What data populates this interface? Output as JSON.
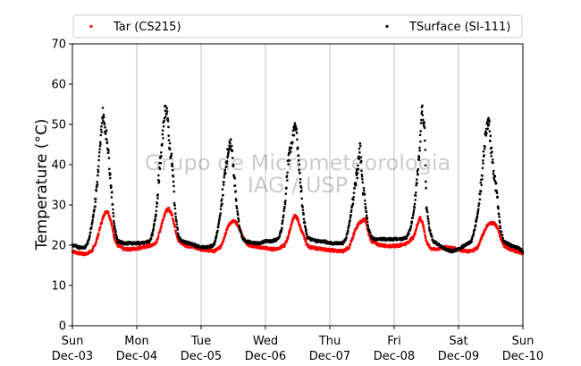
{
  "chart_data": {
    "type": "scatter",
    "ylabel": "Temperature (°C)",
    "ylim": [
      0,
      70
    ],
    "yticks": [
      0,
      10,
      20,
      30,
      40,
      50,
      60,
      70
    ],
    "xlim": [
      "2023-12-03 00:00",
      "2023-12-10 00:00"
    ],
    "xticks": [
      {
        "day": "Sun",
        "date": "Dec-03"
      },
      {
        "day": "Mon",
        "date": "Dec-04"
      },
      {
        "day": "Tue",
        "date": "Dec-05"
      },
      {
        "day": "Wed",
        "date": "Dec-06"
      },
      {
        "day": "Thu",
        "date": "Dec-07"
      },
      {
        "day": "Fri",
        "date": "Dec-08"
      },
      {
        "day": "Sat",
        "date": "Dec-09"
      },
      {
        "day": "Sun",
        "date": "Dec-10"
      }
    ],
    "grid": "vertical",
    "legend_position": "top",
    "watermark": [
      "Grupo de Micrometeorologia",
      "IAG / USP"
    ],
    "series": [
      {
        "name": "Tar (CS215)",
        "color": "#ff0000",
        "x_days": [
          0,
          0.1,
          0.2,
          0.3,
          0.35,
          0.4,
          0.45,
          0.5,
          0.55,
          0.6,
          0.65,
          0.7,
          0.75,
          0.8,
          0.9,
          1,
          1.1,
          1.2,
          1.3,
          1.35,
          1.4,
          1.45,
          1.5,
          1.55,
          1.6,
          1.65,
          1.7,
          1.75,
          1.8,
          1.9,
          2,
          2.1,
          2.2,
          2.3,
          2.35,
          2.4,
          2.45,
          2.5,
          2.55,
          2.6,
          2.65,
          2.7,
          2.75,
          2.8,
          2.9,
          3,
          3.1,
          3.2,
          3.3,
          3.35,
          3.4,
          3.45,
          3.5,
          3.55,
          3.6,
          3.65,
          3.7,
          3.75,
          3.8,
          3.9,
          4,
          4.1,
          4.2,
          4.3,
          4.35,
          4.4,
          4.45,
          4.5,
          4.55,
          4.6,
          4.65,
          4.7,
          4.75,
          4.8,
          4.9,
          5,
          5.1,
          5.2,
          5.3,
          5.35,
          5.4,
          5.45,
          5.5,
          5.55,
          5.6,
          5.65,
          5.7,
          5.75,
          5.8,
          5.9,
          6,
          6.1,
          6.2,
          6.3,
          6.35,
          6.4,
          6.45,
          6.5,
          6.55,
          6.6,
          6.65,
          6.7,
          6.75,
          6.8,
          6.9,
          7
        ],
        "values": [
          18.5,
          18,
          17.8,
          18.5,
          20,
          22.5,
          25.5,
          28,
          28.5,
          26,
          22,
          20,
          19.5,
          19,
          19,
          19.2,
          19.5,
          19.8,
          20.5,
          23,
          26,
          28.5,
          29,
          27.5,
          24,
          21,
          20.5,
          20,
          19.8,
          19.5,
          19,
          18.8,
          18.5,
          19.5,
          21.5,
          24,
          25.5,
          26,
          25.5,
          24,
          22,
          20.5,
          20,
          19.8,
          19.5,
          19.3,
          19,
          19.2,
          20,
          22,
          25,
          27.5,
          26.5,
          24,
          22,
          20,
          19.5,
          19.3,
          19.2,
          19,
          18.8,
          18.6,
          18.5,
          19.5,
          21.5,
          24,
          25.5,
          26,
          26.5,
          23,
          21,
          20.5,
          20.2,
          20,
          19.8,
          19.8,
          20,
          20.5,
          22,
          24.5,
          27,
          25,
          21,
          19.5,
          19,
          19,
          19.2,
          19.4,
          19.5,
          19.3,
          19,
          18.5,
          18.5,
          19.5,
          21.5,
          23.5,
          25,
          25.5,
          25.5,
          24.5,
          22,
          20,
          19.5,
          19,
          18.5,
          18
        ]
      },
      {
        "name": "TSurface (SI-111)",
        "color": "#000000",
        "x_days": [
          0,
          0.1,
          0.2,
          0.25,
          0.3,
          0.35,
          0.4,
          0.43,
          0.47,
          0.5,
          0.55,
          0.6,
          0.65,
          0.7,
          0.8,
          0.9,
          1,
          1.1,
          1.2,
          1.25,
          1.3,
          1.35,
          1.4,
          1.43,
          1.47,
          1.5,
          1.55,
          1.6,
          1.65,
          1.7,
          1.8,
          1.9,
          2,
          2.1,
          2.2,
          2.25,
          2.3,
          2.35,
          2.4,
          2.43,
          2.47,
          2.5,
          2.55,
          2.6,
          2.65,
          2.7,
          2.8,
          2.9,
          3,
          3.1,
          3.2,
          3.25,
          3.3,
          3.35,
          3.4,
          3.43,
          3.47,
          3.5,
          3.55,
          3.6,
          3.65,
          3.7,
          3.8,
          3.9,
          4,
          4.1,
          4.2,
          4.25,
          4.3,
          4.35,
          4.4,
          4.43,
          4.47,
          4.5,
          4.55,
          4.6,
          4.65,
          4.7,
          4.8,
          4.9,
          5,
          5.1,
          5.2,
          5.25,
          5.3,
          5.35,
          5.4,
          5.43,
          5.47,
          5.5,
          5.55,
          5.6,
          5.65,
          5.7,
          5.8,
          5.9,
          6,
          6.1,
          6.2,
          6.25,
          6.3,
          6.35,
          6.4,
          6.43,
          6.47,
          6.5,
          6.55,
          6.6,
          6.65,
          6.7,
          6.8,
          6.9,
          7
        ],
        "values": [
          20,
          19.5,
          19.5,
          21,
          25,
          30,
          38,
          44,
          53,
          50,
          45,
          35,
          25,
          21,
          20.5,
          20.5,
          20.5,
          20.5,
          21,
          23,
          28,
          38,
          46,
          53,
          54,
          46,
          40,
          28,
          22,
          21,
          20.5,
          20,
          19.5,
          19.5,
          20,
          23,
          28,
          35,
          42,
          44,
          45,
          40,
          30,
          24,
          21.5,
          21,
          20.5,
          20.5,
          21,
          21,
          21.5,
          24,
          30,
          40,
          45,
          48,
          50,
          44,
          35,
          26,
          22,
          21.5,
          21,
          21,
          20.5,
          20.5,
          20.5,
          21.5,
          25,
          30,
          36,
          38,
          45,
          36,
          30,
          24,
          22,
          21.5,
          21.5,
          21.5,
          21.5,
          21.5,
          22,
          24,
          28,
          35,
          45,
          54,
          50,
          30,
          24,
          21,
          20.5,
          20,
          19,
          18.5,
          19,
          20,
          21,
          24,
          28,
          35,
          44,
          49,
          51,
          45,
          38,
          32,
          24,
          21,
          20,
          19.5,
          18.5
        ]
      }
    ]
  }
}
